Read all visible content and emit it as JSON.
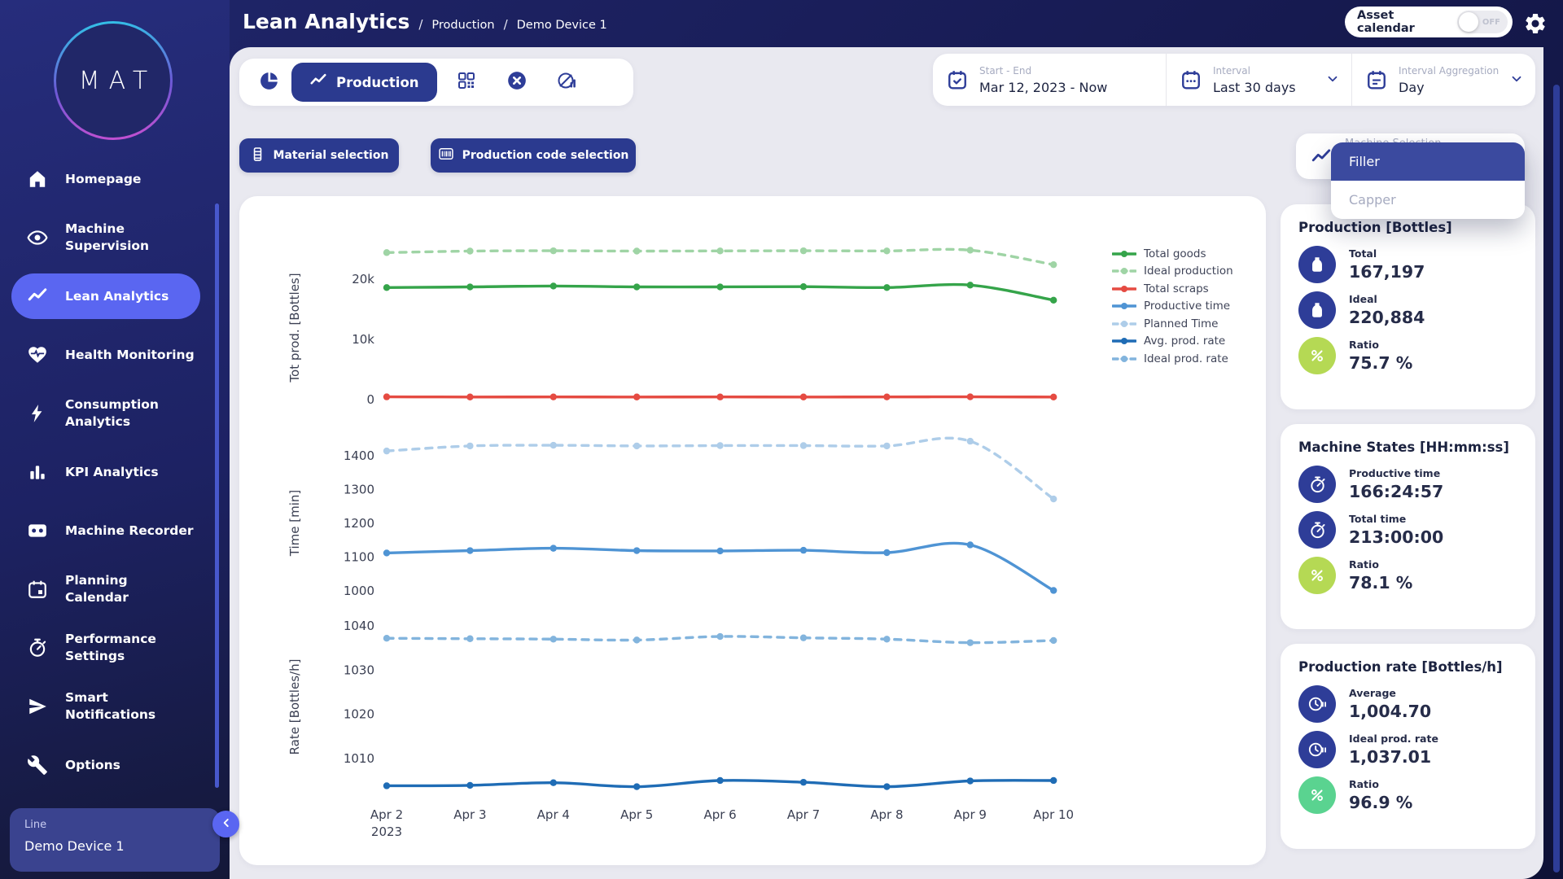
{
  "header": {
    "title": "Lean Analytics",
    "breadcrumb_separator": "/",
    "breadcrumbs": [
      "Production",
      "Demo Device 1"
    ],
    "asset_calendar": {
      "label": "Asset calendar",
      "state": "OFF"
    }
  },
  "sidebar": {
    "logo_text": "MAT",
    "items": [
      {
        "label": "Homepage",
        "icon": "home-icon",
        "active": false
      },
      {
        "label": "Machine\nSupervision",
        "icon": "eye-icon",
        "active": false
      },
      {
        "label": "Lean Analytics",
        "icon": "trend-line-icon",
        "active": true
      },
      {
        "label": "Health Monitoring",
        "icon": "heart-pulse-icon",
        "active": false
      },
      {
        "label": "Consumption\nAnalytics",
        "icon": "lightning-icon",
        "active": false
      },
      {
        "label": "KPI Analytics",
        "icon": "bar-chart-icon",
        "active": false
      },
      {
        "label": "Machine Recorder",
        "icon": "cassette-icon",
        "active": false
      },
      {
        "label": "Planning\nCalendar",
        "icon": "calendar-icon",
        "active": false
      },
      {
        "label": "Performance\nSettings",
        "icon": "stopwatch-icon",
        "active": false
      },
      {
        "label": "Smart\nNotifications",
        "icon": "send-icon",
        "active": false
      },
      {
        "label": "Options",
        "icon": "wrench-icon",
        "active": false
      }
    ],
    "device": {
      "label": "Line",
      "name": "Demo Device 1"
    }
  },
  "toolbar": {
    "production_label": "Production"
  },
  "filters": {
    "start_end": {
      "label": "Start - End",
      "value": "Mar 12, 2023 - Now"
    },
    "interval": {
      "label": "Interval",
      "value": "Last 30 days"
    },
    "aggregation": {
      "label": "Interval Aggregation",
      "value": "Day"
    }
  },
  "selection": {
    "material_label": "Material selection",
    "production_code_label": "Production code selection",
    "machine_selection_label": "Machine Selection",
    "dropdown_options": [
      "Filler",
      "Capper"
    ],
    "dropdown_selected": "Filler"
  },
  "chart_data": {
    "type": "line",
    "x_labels": [
      "Apr 2",
      "Apr 3",
      "Apr 4",
      "Apr 5",
      "Apr 6",
      "Apr 7",
      "Apr 8",
      "Apr 9",
      "Apr 10"
    ],
    "x_sublabel": "2023",
    "grid": false,
    "legend_position": "top-right",
    "panels": [
      {
        "ylabel": "Tot prod. [Bottles]",
        "ylim": [
          -1900,
          25800
        ],
        "yticks": [
          {
            "value": 20000,
            "label": "20k"
          },
          {
            "value": 10000,
            "label": "10k"
          },
          {
            "value": 0,
            "label": "0"
          }
        ],
        "series": [
          {
            "name": "Total goods",
            "color": "#35a44a",
            "dashed": false,
            "values": [
              18600,
              18700,
              18850,
              18700,
              18700,
              18750,
              18600,
              19000,
              16500
            ]
          },
          {
            "name": "Ideal production",
            "color": "#9fd4a5",
            "dashed": true,
            "values": [
              24400,
              24650,
              24700,
              24650,
              24680,
              24700,
              24680,
              24800,
              22400
            ]
          },
          {
            "name": "Total scraps",
            "color": "#e54b42",
            "dashed": false,
            "values": [
              450,
              430,
              440,
              430,
              435,
              430,
              440,
              455,
              420
            ]
          }
        ]
      },
      {
        "ylabel": "Time [min]",
        "ylim": [
          966,
          1436
        ],
        "yticks": [
          {
            "value": 1400,
            "label": "1400"
          },
          {
            "value": 1300,
            "label": "1300"
          },
          {
            "value": 1200,
            "label": "1200"
          },
          {
            "value": 1100,
            "label": "1100"
          },
          {
            "value": 1000,
            "label": "1000"
          }
        ],
        "series": [
          {
            "name": "Productive time",
            "color": "#4f94d4",
            "dashed": false,
            "values": [
              1112,
              1119,
              1126,
              1119,
              1118,
              1120,
              1113,
              1136,
              1001
            ]
          },
          {
            "name": "Planned Time",
            "color": "#aecde9",
            "dashed": true,
            "values": [
              1414,
              1429,
              1431,
              1429,
              1430,
              1430,
              1429,
              1443,
              1272
            ]
          }
        ]
      },
      {
        "ylabel": "Rate [Bottles/h]",
        "ylim": [
          1002.6,
          1040.74
        ],
        "yticks": [
          {
            "value": 1040,
            "label": "1040"
          },
          {
            "value": 1030,
            "label": "1030"
          },
          {
            "value": 1020,
            "label": "1020"
          },
          {
            "value": 1010,
            "label": "1010"
          }
        ],
        "series": [
          {
            "name": "Avg. prod. rate",
            "color": "#1f6cb5",
            "dashed": false,
            "values": [
              1003.8,
              1003.9,
              1004.5,
              1003.6,
              1005.0,
              1004.6,
              1003.6,
              1004.9,
              1005.0
            ]
          },
          {
            "name": "Ideal prod. rate",
            "color": "#82b4dd",
            "dashed": true,
            "values": [
              1037.2,
              1037.1,
              1037.0,
              1036.8,
              1037.6,
              1037.3,
              1037.0,
              1036.2,
              1036.7
            ]
          }
        ]
      }
    ]
  },
  "stats": {
    "accent_navy": "#2e3d98",
    "panels": [
      {
        "title": "Production [Bottles]",
        "rows": [
          {
            "label": "Total",
            "value": "167,197",
            "icon": "bottle-icon",
            "color": "#2e3d98"
          },
          {
            "label": "Ideal",
            "value": "220,884",
            "icon": "bottle-icon",
            "color": "#2e3d98"
          },
          {
            "label": "Ratio",
            "value": "75.7 %",
            "icon": "percent-icon",
            "color": "#b5d954"
          }
        ]
      },
      {
        "title": "Machine States [HH:mm:ss]",
        "rows": [
          {
            "label": "Productive time",
            "value": "166:24:57",
            "icon": "stopwatch-icon",
            "color": "#2e3d98"
          },
          {
            "label": "Total time",
            "value": "213:00:00",
            "icon": "stopwatch-icon",
            "color": "#2e3d98"
          },
          {
            "label": "Ratio",
            "value": "78.1 %",
            "icon": "percent-icon",
            "color": "#b5d954"
          }
        ]
      },
      {
        "title": "Production rate [Bottles/h]",
        "rows": [
          {
            "label": "Average",
            "value": "1,004.70",
            "icon": "clock-pause-icon",
            "color": "#2e3d98"
          },
          {
            "label": "Ideal prod. rate",
            "value": "1,037.01",
            "icon": "clock-pause-icon",
            "color": "#2e3d98"
          },
          {
            "label": "Ratio",
            "value": "96.9 %",
            "icon": "percent-icon",
            "color": "#5ad390"
          }
        ]
      }
    ]
  }
}
